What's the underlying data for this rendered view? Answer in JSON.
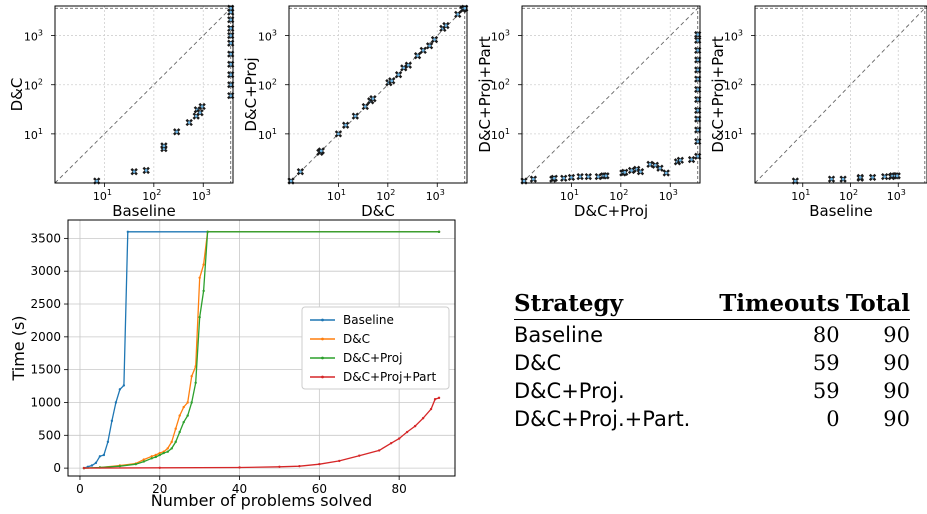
{
  "chart_data": [
    {
      "type": "scatter",
      "xlabel": "Baseline",
      "ylabel": "D&C",
      "scale": "log",
      "xlim": [
        1,
        4000
      ],
      "ylim": [
        1,
        4000
      ],
      "xticks": [
        "10",
        "100",
        "1000"
      ],
      "yticks": [
        "10",
        "100",
        "1000"
      ],
      "grid": true,
      "points": [
        [
          7,
          1.1
        ],
        [
          40,
          1.7
        ],
        [
          70,
          1.8
        ],
        [
          160,
          5
        ],
        [
          160,
          5.7
        ],
        [
          290,
          11
        ],
        [
          520,
          17
        ],
        [
          720,
          23
        ],
        [
          760,
          31
        ],
        [
          860,
          27
        ],
        [
          950,
          36
        ],
        [
          3600,
          60
        ],
        [
          3600,
          100
        ],
        [
          3600,
          160
        ],
        [
          3600,
          260
        ],
        [
          3600,
          420
        ],
        [
          3600,
          700
        ],
        [
          3600,
          1000
        ],
        [
          3600,
          1400
        ],
        [
          3600,
          2100
        ],
        [
          3600,
          3000
        ],
        [
          3600,
          3600
        ]
      ]
    },
    {
      "type": "scatter",
      "xlabel": "D&C",
      "ylabel": "D&C+Proj",
      "scale": "log",
      "xlim": [
        1,
        4000
      ],
      "ylim": [
        1,
        4000
      ],
      "xticks": [
        "10",
        "100",
        "1000"
      ],
      "yticks": [
        "10",
        "100",
        "1000"
      ],
      "grid": true,
      "points": [
        [
          1.1,
          1.1
        ],
        [
          1.7,
          1.7
        ],
        [
          4.2,
          4.2
        ],
        [
          4.5,
          4.5
        ],
        [
          10,
          10
        ],
        [
          14,
          15
        ],
        [
          22,
          23
        ],
        [
          35,
          36
        ],
        [
          45,
          47
        ],
        [
          50,
          52
        ],
        [
          105,
          110
        ],
        [
          120,
          120
        ],
        [
          165,
          160
        ],
        [
          210,
          220
        ],
        [
          260,
          250
        ],
        [
          400,
          390
        ],
        [
          520,
          500
        ],
        [
          700,
          620
        ],
        [
          880,
          830
        ],
        [
          1300,
          1400
        ],
        [
          1500,
          1600
        ],
        [
          2600,
          2700
        ],
        [
          3300,
          3400
        ],
        [
          3600,
          3600
        ]
      ]
    },
    {
      "type": "scatter",
      "xlabel": "D&C+Proj",
      "ylabel": "D&C+Proj+Part",
      "scale": "log",
      "xlim": [
        1,
        4000
      ],
      "ylim": [
        1,
        4000
      ],
      "xticks": [
        "10",
        "100",
        "1000"
      ],
      "yticks": [
        "10",
        "100",
        "1000"
      ],
      "grid": true,
      "points": [
        [
          1.1,
          1.1
        ],
        [
          1.7,
          1.2
        ],
        [
          4.2,
          1.2
        ],
        [
          4.5,
          1.25
        ],
        [
          7,
          1.25
        ],
        [
          10,
          1.3
        ],
        [
          15,
          1.35
        ],
        [
          22,
          1.35
        ],
        [
          35,
          1.35
        ],
        [
          45,
          1.4
        ],
        [
          50,
          1.4
        ],
        [
          110,
          1.6
        ],
        [
          120,
          1.65
        ],
        [
          165,
          1.8
        ],
        [
          210,
          1.9
        ],
        [
          250,
          1.7
        ],
        [
          390,
          2.4
        ],
        [
          500,
          2.3
        ],
        [
          620,
          2
        ],
        [
          830,
          1.6
        ],
        [
          1400,
          2.7
        ],
        [
          1600,
          2.9
        ],
        [
          2700,
          3
        ],
        [
          3600,
          3.5
        ],
        [
          3600,
          7
        ],
        [
          3600,
          12
        ],
        [
          3600,
          20
        ],
        [
          3600,
          30
        ],
        [
          3600,
          50
        ],
        [
          3600,
          80
        ],
        [
          3600,
          130
        ],
        [
          3600,
          200
        ],
        [
          3600,
          320
        ],
        [
          3600,
          500
        ],
        [
          3600,
          800
        ],
        [
          3600,
          1050
        ]
      ]
    },
    {
      "type": "scatter",
      "xlabel": "Baseline",
      "ylabel": "D&C+Proj+Part",
      "scale": "log",
      "xlim": [
        1,
        4000
      ],
      "ylim": [
        1,
        4000
      ],
      "xticks": [
        "10",
        "100",
        "1000"
      ],
      "yticks": [
        "10",
        "100",
        "1000"
      ],
      "grid": true,
      "points": [
        [
          7,
          1.1
        ],
        [
          40,
          1.2
        ],
        [
          70,
          1.2
        ],
        [
          160,
          1.25
        ],
        [
          160,
          1.3
        ],
        [
          290,
          1.3
        ],
        [
          520,
          1.35
        ],
        [
          720,
          1.35
        ],
        [
          760,
          1.4
        ],
        [
          860,
          1.4
        ],
        [
          950,
          1.4
        ]
      ]
    },
    {
      "type": "line",
      "xlabel": "Number of problems solved",
      "ylabel": "Time (s)",
      "xlim": [
        -3,
        94
      ],
      "ylim": [
        -120,
        3780
      ],
      "xticks": [
        0,
        20,
        40,
        60,
        80
      ],
      "yticks": [
        0,
        500,
        1000,
        1500,
        2000,
        2500,
        3000,
        3500
      ],
      "grid": true,
      "legend_position": "center-right",
      "series": [
        {
          "name": "Baseline",
          "color": "#1f77b4",
          "points": [
            [
              1,
              0
            ],
            [
              2,
              20
            ],
            [
              3,
              40
            ],
            [
              4,
              80
            ],
            [
              5,
              180
            ],
            [
              6,
              200
            ],
            [
              7,
              400
            ],
            [
              8,
              720
            ],
            [
              9,
              1000
            ],
            [
              10,
              1200
            ],
            [
              11,
              1260
            ],
            [
              12,
              3600
            ],
            [
              90,
              3600
            ]
          ]
        },
        {
          "name": "D&C",
          "color": "#ff7f0e",
          "points": [
            [
              1,
              0
            ],
            [
              5,
              10
            ],
            [
              10,
              40
            ],
            [
              14,
              70
            ],
            [
              16,
              130
            ],
            [
              18,
              180
            ],
            [
              19,
              200
            ],
            [
              20,
              230
            ],
            [
              21,
              250
            ],
            [
              22,
              300
            ],
            [
              23,
              400
            ],
            [
              24,
              600
            ],
            [
              25,
              800
            ],
            [
              26,
              930
            ],
            [
              27,
              1000
            ],
            [
              28,
              1400
            ],
            [
              29,
              1550
            ],
            [
              30,
              2900
            ],
            [
              31,
              3100
            ],
            [
              32,
              3600
            ],
            [
              90,
              3600
            ]
          ]
        },
        {
          "name": "D&C+Proj",
          "color": "#2ca02c",
          "points": [
            [
              1,
              0
            ],
            [
              5,
              10
            ],
            [
              10,
              30
            ],
            [
              14,
              60
            ],
            [
              16,
              100
            ],
            [
              18,
              150
            ],
            [
              19,
              170
            ],
            [
              20,
              200
            ],
            [
              21,
              230
            ],
            [
              22,
              250
            ],
            [
              23,
              300
            ],
            [
              24,
              400
            ],
            [
              25,
              550
            ],
            [
              26,
              700
            ],
            [
              27,
              800
            ],
            [
              28,
              1000
            ],
            [
              29,
              1300
            ],
            [
              30,
              2300
            ],
            [
              31,
              2700
            ],
            [
              32,
              3600
            ],
            [
              90,
              3600
            ]
          ]
        },
        {
          "name": "D&C+Proj+Part",
          "color": "#d62728",
          "points": [
            [
              1,
              1
            ],
            [
              20,
              5
            ],
            [
              40,
              10
            ],
            [
              50,
              20
            ],
            [
              55,
              30
            ],
            [
              60,
              60
            ],
            [
              65,
              110
            ],
            [
              70,
              190
            ],
            [
              75,
              270
            ],
            [
              78,
              380
            ],
            [
              80,
              450
            ],
            [
              82,
              550
            ],
            [
              84,
              640
            ],
            [
              86,
              760
            ],
            [
              88,
              900
            ],
            [
              89,
              1050
            ],
            [
              90,
              1070
            ]
          ]
        }
      ]
    }
  ],
  "table": {
    "headers": [
      "Strategy",
      "Timeouts",
      "Total"
    ],
    "rows": [
      [
        "Baseline",
        "80",
        "90"
      ],
      [
        "D&C",
        "59",
        "90"
      ],
      [
        "D&C+Proj.",
        "59",
        "90"
      ],
      [
        "D&C+Proj.+Part.",
        "0",
        "90"
      ]
    ]
  }
}
